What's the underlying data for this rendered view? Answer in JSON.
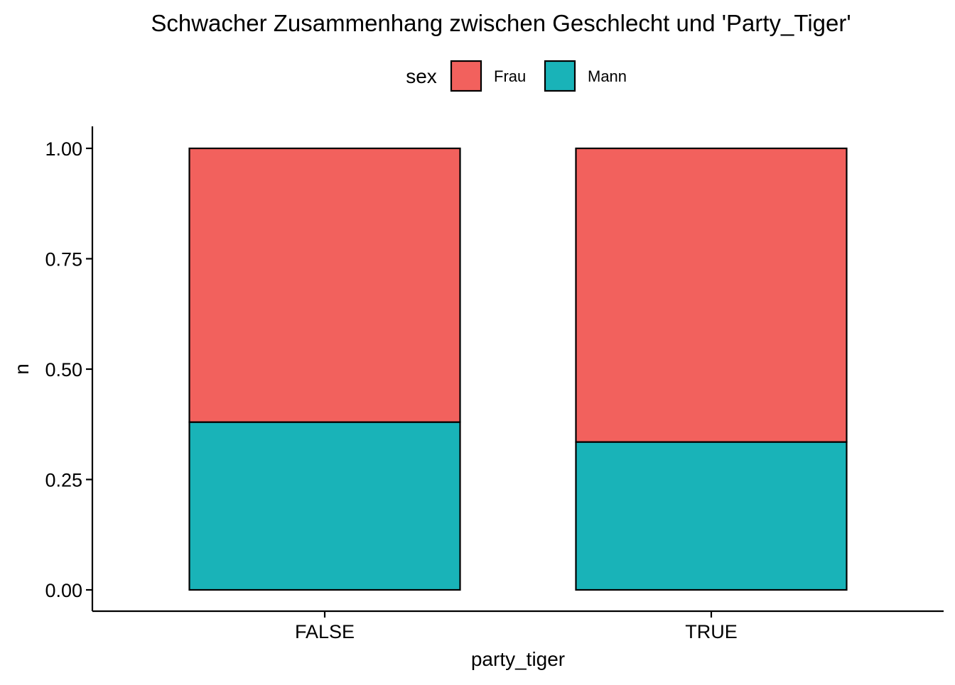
{
  "chart_data": {
    "type": "bar",
    "stacked": true,
    "title": "Schwacher Zusammenhang zwischen Geschlecht und 'Party_Tiger'",
    "xlabel": "party_tiger",
    "ylabel": "n",
    "categories": [
      "FALSE",
      "TRUE"
    ],
    "series": [
      {
        "name": "Mann",
        "values": [
          0.38,
          0.335
        ],
        "color": "#19b3b8"
      },
      {
        "name": "Frau",
        "values": [
          0.62,
          0.665
        ],
        "color": "#f2615d"
      }
    ],
    "legend": {
      "title": "sex",
      "order": [
        "Frau",
        "Mann"
      ],
      "placement": "top"
    },
    "ylim": [
      0,
      1
    ],
    "yticks": [
      "0.00",
      "0.25",
      "0.50",
      "0.75",
      "1.00"
    ],
    "grid": false
  }
}
